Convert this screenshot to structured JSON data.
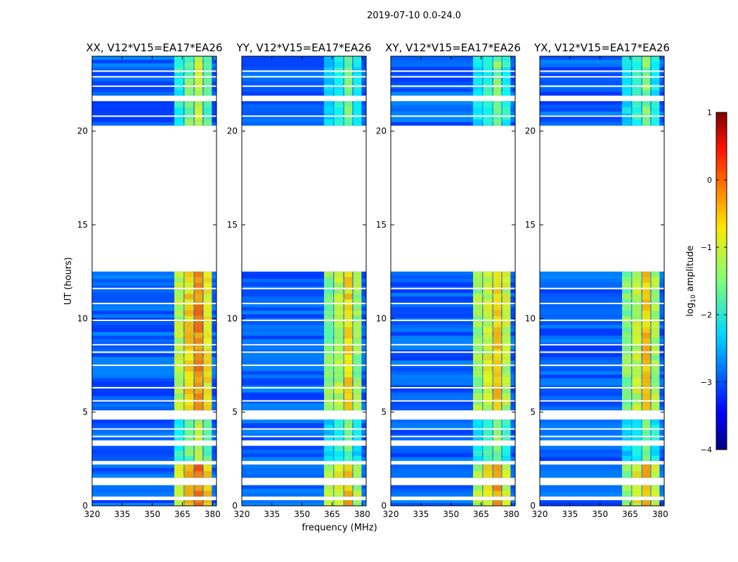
{
  "chart_data": {
    "type": "heatmap",
    "suptitle": "2019-07-10 0.0-24.0",
    "xlabel": "frequency (MHz)",
    "ylabel": "UT (hours)",
    "xlim": [
      320,
      382
    ],
    "ylim": [
      0,
      24
    ],
    "xticks": [
      320,
      335,
      350,
      365,
      380
    ],
    "yticks": [
      0,
      5,
      10,
      15,
      20
    ],
    "panels": [
      {
        "title": "XX, V12*V15=EA17*EA26",
        "rfi_level": [
          -1.4,
          -1.0,
          -0.6,
          -1.1,
          -1.3
        ]
      },
      {
        "title": "YY, V12*V15=EA17*EA26",
        "rfi_level": [
          -1.7,
          -1.4,
          -1.0,
          -1.6,
          -1.8
        ]
      },
      {
        "title": "XY, V12*V15=EA17*EA26",
        "rfi_level": [
          -1.6,
          -1.3,
          -0.9,
          -1.4,
          -1.6
        ]
      },
      {
        "title": "YX, V12*V15=EA17*EA26",
        "rfi_level": [
          -1.7,
          -1.4,
          -0.9,
          -1.5,
          -1.8
        ]
      }
    ],
    "background_level": -2.9,
    "rfi_band_mhz": [
      361,
      380
    ],
    "rfi_subbands_mhz": [
      [
        361,
        366
      ],
      [
        366,
        371
      ],
      [
        371,
        375.5
      ],
      [
        375.5,
        380
      ]
    ],
    "data_intervals_hours": [
      [
        0,
        0.3
      ],
      [
        0.5,
        1.1
      ],
      [
        1.5,
        2.2
      ],
      [
        2.4,
        3.2
      ],
      [
        3.5,
        4.6
      ],
      [
        5.1,
        12.5
      ],
      [
        20.3,
        21.6
      ],
      [
        21.9,
        24
      ]
    ],
    "flagged_lines_hours": [
      3.7,
      4.1,
      5.6,
      6.3,
      7.5,
      8.2,
      8.6,
      9.9,
      10.8,
      11.6,
      20.8,
      22.4,
      22.9,
      23.2
    ],
    "colorbar": {
      "label": "log10 amplitude",
      "label_main": "log",
      "label_sub": "10",
      "label_rest": " amplitude",
      "min": -4,
      "max": 1,
      "ticks": [
        "1",
        "0",
        "−1",
        "−2",
        "−3",
        "−4"
      ],
      "colormap": "jet"
    }
  }
}
